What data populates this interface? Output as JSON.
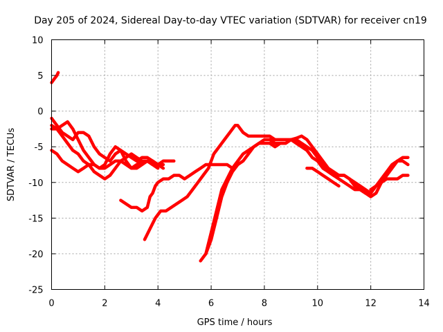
{
  "chart_data": {
    "type": "line",
    "title": "Day 205 of 2024, Sidereal Day-to-day VTEC variation (SDTVAR) for receiver cn19",
    "xlabel": "GPS time / hours",
    "ylabel": "SDTVAR / TECUs",
    "xlim": [
      0,
      14
    ],
    "ylim": [
      -25,
      10
    ],
    "xticks": [
      0,
      2,
      4,
      6,
      8,
      10,
      12,
      14
    ],
    "yticks": [
      -25,
      -20,
      -15,
      -10,
      -5,
      0,
      5,
      10
    ],
    "grid": true,
    "color": "#ff0000",
    "series": [
      {
        "name": "s1",
        "points": [
          [
            0.0,
            4.0
          ],
          [
            0.1,
            4.5
          ],
          [
            0.2,
            5.0
          ],
          [
            0.25,
            5.4
          ]
        ]
      },
      {
        "name": "s2",
        "points": [
          [
            0.0,
            -1.0
          ],
          [
            0.2,
            -2.0
          ],
          [
            0.4,
            -3.0
          ],
          [
            0.6,
            -3.5
          ],
          [
            0.8,
            -4.0
          ],
          [
            1.0,
            -3.0
          ],
          [
            1.2,
            -3.0
          ],
          [
            1.4,
            -3.5
          ],
          [
            1.6,
            -5.0
          ],
          [
            1.8,
            -6.0
          ],
          [
            2.0,
            -6.5
          ],
          [
            2.2,
            -7.0
          ],
          [
            2.4,
            -6.0
          ],
          [
            2.6,
            -5.5
          ],
          [
            2.8,
            -6.0
          ],
          [
            3.0,
            -6.5
          ],
          [
            3.2,
            -7.0
          ],
          [
            3.4,
            -6.5
          ],
          [
            3.6,
            -6.5
          ],
          [
            3.8,
            -7.0
          ],
          [
            4.0,
            -7.5
          ],
          [
            4.2,
            -7.5
          ]
        ]
      },
      {
        "name": "s3",
        "points": [
          [
            0.0,
            -2.0
          ],
          [
            0.2,
            -2.5
          ],
          [
            0.4,
            -2.0
          ],
          [
            0.6,
            -1.5
          ],
          [
            0.8,
            -2.5
          ],
          [
            1.0,
            -4.0
          ],
          [
            1.2,
            -5.5
          ],
          [
            1.4,
            -6.5
          ],
          [
            1.6,
            -7.5
          ],
          [
            1.8,
            -8.0
          ],
          [
            2.0,
            -7.5
          ],
          [
            2.2,
            -6.0
          ],
          [
            2.4,
            -5.0
          ],
          [
            2.6,
            -5.5
          ],
          [
            2.8,
            -7.0
          ],
          [
            3.0,
            -8.0
          ],
          [
            3.2,
            -8.0
          ],
          [
            3.4,
            -7.5
          ],
          [
            3.6,
            -7.0
          ],
          [
            3.8,
            -7.0
          ],
          [
            4.0,
            -7.5
          ],
          [
            4.2,
            -8.0
          ]
        ]
      },
      {
        "name": "s4",
        "points": [
          [
            0.0,
            -2.5
          ],
          [
            0.2,
            -2.5
          ],
          [
            0.4,
            -3.5
          ],
          [
            0.6,
            -4.5
          ],
          [
            0.8,
            -5.5
          ],
          [
            1.0,
            -6.0
          ],
          [
            1.2,
            -7.0
          ],
          [
            1.4,
            -7.5
          ],
          [
            1.6,
            -8.5
          ],
          [
            1.8,
            -9.0
          ],
          [
            2.0,
            -9.5
          ],
          [
            2.2,
            -9.0
          ],
          [
            2.4,
            -8.0
          ],
          [
            2.6,
            -7.0
          ],
          [
            2.8,
            -6.5
          ],
          [
            3.0,
            -6.0
          ],
          [
            3.2,
            -6.5
          ],
          [
            3.4,
            -7.0
          ],
          [
            3.6,
            -7.0
          ],
          [
            3.8,
            -7.5
          ],
          [
            4.0,
            -7.5
          ],
          [
            4.2,
            -7.0
          ],
          [
            4.4,
            -7.0
          ],
          [
            4.6,
            -7.0
          ]
        ]
      },
      {
        "name": "s5",
        "points": [
          [
            0.0,
            -5.5
          ],
          [
            0.2,
            -6.0
          ],
          [
            0.4,
            -7.0
          ],
          [
            0.6,
            -7.5
          ],
          [
            0.8,
            -8.0
          ],
          [
            1.0,
            -8.5
          ],
          [
            1.2,
            -8.0
          ],
          [
            1.4,
            -7.5
          ],
          [
            1.6,
            -7.5
          ],
          [
            1.8,
            -8.0
          ],
          [
            2.0,
            -8.0
          ],
          [
            2.2,
            -7.5
          ],
          [
            2.4,
            -7.0
          ],
          [
            2.6,
            -7.0
          ],
          [
            2.8,
            -7.5
          ],
          [
            3.0,
            -8.0
          ],
          [
            3.2,
            -7.5
          ],
          [
            3.4,
            -7.0
          ],
          [
            3.6,
            -7.0
          ],
          [
            3.8,
            -7.5
          ],
          [
            4.0,
            -8.0
          ]
        ]
      },
      {
        "name": "s6",
        "points": [
          [
            2.6,
            -12.5
          ],
          [
            2.8,
            -13.0
          ],
          [
            3.0,
            -13.5
          ],
          [
            3.2,
            -13.5
          ],
          [
            3.4,
            -14.0
          ],
          [
            3.6,
            -13.5
          ],
          [
            3.7,
            -12.0
          ],
          [
            3.8,
            -11.5
          ],
          [
            3.9,
            -10.5
          ],
          [
            4.0,
            -10.0
          ],
          [
            4.2,
            -9.5
          ],
          [
            4.4,
            -9.5
          ],
          [
            4.6,
            -9.0
          ],
          [
            4.8,
            -9.0
          ],
          [
            5.0,
            -9.5
          ],
          [
            5.2,
            -9.0
          ],
          [
            5.4,
            -8.5
          ],
          [
            5.6,
            -8.0
          ],
          [
            5.8,
            -7.5
          ],
          [
            6.0,
            -7.5
          ],
          [
            6.2,
            -7.5
          ],
          [
            6.4,
            -7.5
          ],
          [
            6.6,
            -7.5
          ],
          [
            6.8,
            -8.0
          ],
          [
            7.0,
            -7.5
          ]
        ]
      },
      {
        "name": "s7",
        "points": [
          [
            3.5,
            -18.0
          ],
          [
            3.7,
            -16.5
          ],
          [
            3.9,
            -15.0
          ],
          [
            4.1,
            -14.0
          ],
          [
            4.3,
            -14.0
          ],
          [
            4.5,
            -13.5
          ],
          [
            4.7,
            -13.0
          ],
          [
            4.9,
            -12.5
          ],
          [
            5.1,
            -12.0
          ],
          [
            5.3,
            -11.0
          ],
          [
            5.5,
            -10.0
          ],
          [
            5.7,
            -9.0
          ],
          [
            5.9,
            -8.0
          ],
          [
            6.1,
            -6.0
          ],
          [
            6.3,
            -5.0
          ],
          [
            6.5,
            -4.0
          ],
          [
            6.7,
            -3.0
          ],
          [
            6.9,
            -2.0
          ],
          [
            7.0,
            -2.0
          ],
          [
            7.2,
            -3.0
          ],
          [
            7.4,
            -3.5
          ],
          [
            7.6,
            -3.5
          ],
          [
            7.8,
            -3.5
          ],
          [
            8.0,
            -3.5
          ],
          [
            8.2,
            -3.5
          ],
          [
            8.4,
            -4.0
          ],
          [
            8.6,
            -4.0
          ],
          [
            8.8,
            -4.0
          ],
          [
            9.0,
            -4.0
          ],
          [
            9.2,
            -3.8
          ],
          [
            9.4,
            -3.5
          ],
          [
            9.6,
            -4.0
          ],
          [
            9.8,
            -5.0
          ],
          [
            10.0,
            -6.0
          ],
          [
            10.2,
            -7.0
          ],
          [
            10.4,
            -8.0
          ],
          [
            10.6,
            -8.5
          ],
          [
            10.8,
            -9.0
          ],
          [
            11.0,
            -9.0
          ],
          [
            11.2,
            -9.5
          ],
          [
            11.4,
            -10.0
          ],
          [
            11.6,
            -10.5
          ],
          [
            11.8,
            -11.0
          ],
          [
            12.0,
            -11.5
          ]
        ]
      },
      {
        "name": "s8",
        "points": [
          [
            5.6,
            -21.0
          ],
          [
            5.8,
            -20.0
          ],
          [
            6.0,
            -18.0
          ],
          [
            6.2,
            -15.0
          ],
          [
            6.4,
            -12.0
          ],
          [
            6.6,
            -10.0
          ],
          [
            6.8,
            -8.5
          ],
          [
            7.0,
            -7.5
          ],
          [
            7.2,
            -7.0
          ],
          [
            7.4,
            -6.0
          ],
          [
            7.6,
            -5.0
          ],
          [
            7.8,
            -4.5
          ],
          [
            8.0,
            -4.0
          ],
          [
            8.2,
            -4.0
          ],
          [
            8.4,
            -4.5
          ],
          [
            8.6,
            -4.5
          ],
          [
            8.8,
            -4.5
          ],
          [
            9.0,
            -4.0
          ],
          [
            9.2,
            -4.0
          ],
          [
            9.4,
            -4.5
          ],
          [
            9.6,
            -5.0
          ],
          [
            9.8,
            -5.5
          ],
          [
            10.0,
            -6.5
          ],
          [
            10.2,
            -7.5
          ],
          [
            10.4,
            -8.5
          ],
          [
            10.6,
            -9.0
          ],
          [
            10.8,
            -9.0
          ],
          [
            11.0,
            -9.0
          ],
          [
            11.2,
            -9.5
          ],
          [
            11.4,
            -10.5
          ],
          [
            11.6,
            -11.0
          ],
          [
            11.8,
            -11.5
          ],
          [
            12.0,
            -12.0
          ],
          [
            12.2,
            -11.5
          ],
          [
            12.4,
            -10.0
          ],
          [
            12.6,
            -9.0
          ],
          [
            12.8,
            -8.0
          ],
          [
            13.0,
            -7.0
          ],
          [
            13.2,
            -6.5
          ],
          [
            13.4,
            -6.5
          ]
        ]
      },
      {
        "name": "s9",
        "points": [
          [
            5.8,
            -20.0
          ],
          [
            6.0,
            -17.0
          ],
          [
            6.2,
            -14.0
          ],
          [
            6.4,
            -11.0
          ],
          [
            6.6,
            -9.5
          ],
          [
            6.8,
            -8.0
          ],
          [
            7.0,
            -7.0
          ],
          [
            7.2,
            -6.0
          ],
          [
            7.4,
            -5.5
          ],
          [
            7.6,
            -5.0
          ],
          [
            7.8,
            -4.5
          ],
          [
            8.0,
            -4.5
          ],
          [
            8.2,
            -4.5
          ],
          [
            8.4,
            -5.0
          ],
          [
            8.6,
            -4.5
          ],
          [
            8.8,
            -4.5
          ],
          [
            9.0,
            -4.0
          ],
          [
            9.2,
            -4.5
          ],
          [
            9.4,
            -5.0
          ],
          [
            9.6,
            -5.5
          ],
          [
            9.8,
            -6.5
          ],
          [
            10.0,
            -7.0
          ],
          [
            10.2,
            -8.0
          ],
          [
            10.4,
            -8.5
          ],
          [
            10.6,
            -9.0
          ],
          [
            10.8,
            -9.5
          ],
          [
            11.0,
            -10.0
          ],
          [
            11.2,
            -10.5
          ],
          [
            11.4,
            -11.0
          ],
          [
            11.6,
            -11.0
          ],
          [
            11.8,
            -11.5
          ],
          [
            12.0,
            -11.5
          ],
          [
            12.2,
            -10.5
          ],
          [
            12.4,
            -9.5
          ],
          [
            12.6,
            -8.5
          ],
          [
            12.8,
            -7.5
          ],
          [
            13.0,
            -7.0
          ],
          [
            13.2,
            -7.0
          ],
          [
            13.4,
            -7.5
          ]
        ]
      },
      {
        "name": "s10",
        "points": [
          [
            9.6,
            -8.0
          ],
          [
            9.8,
            -8.0
          ],
          [
            10.0,
            -8.5
          ],
          [
            10.2,
            -9.0
          ],
          [
            10.4,
            -9.5
          ],
          [
            10.6,
            -10.0
          ],
          [
            10.8,
            -10.5
          ]
        ]
      },
      {
        "name": "s11",
        "points": [
          [
            12.0,
            -11.0
          ],
          [
            12.2,
            -10.5
          ],
          [
            12.4,
            -10.0
          ],
          [
            12.6,
            -9.5
          ],
          [
            12.8,
            -9.5
          ],
          [
            13.0,
            -9.5
          ],
          [
            13.2,
            -9.0
          ],
          [
            13.4,
            -9.0
          ]
        ]
      }
    ]
  }
}
